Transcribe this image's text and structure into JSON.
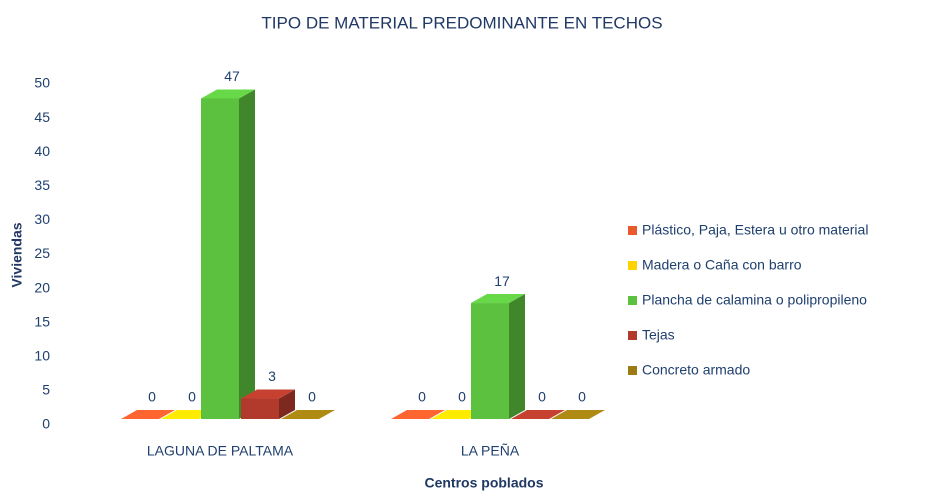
{
  "chart_data": {
    "type": "bar3d",
    "title": "TIPO DE MATERIAL PREDOMINANTE EN TECHOS",
    "x_label": "Centros poblados",
    "y_label": "Viviendas",
    "categories": [
      "LAGUNA DE PALTAMA",
      "LA PEÑA"
    ],
    "series": [
      {
        "name": "Plástico, Paja, Estera u otro material",
        "color": "#e85a2c",
        "values": [
          0,
          0
        ]
      },
      {
        "name": "Madera o Caña con barro",
        "color": "#ffd200",
        "values": [
          0,
          0
        ]
      },
      {
        "name": "Plancha de calamina o polipropileno",
        "color": "#5cc13f",
        "values": [
          47,
          17
        ]
      },
      {
        "name": "Tejas",
        "color": "#b23a2c",
        "values": [
          3,
          0
        ]
      },
      {
        "name": "Concreto armado",
        "color": "#9c7c12",
        "values": [
          0,
          0
        ]
      }
    ],
    "ylim": [
      0,
      50
    ],
    "yticks": [
      0,
      5,
      10,
      15,
      20,
      25,
      30,
      35,
      40,
      45,
      50
    ],
    "legend": "right"
  }
}
